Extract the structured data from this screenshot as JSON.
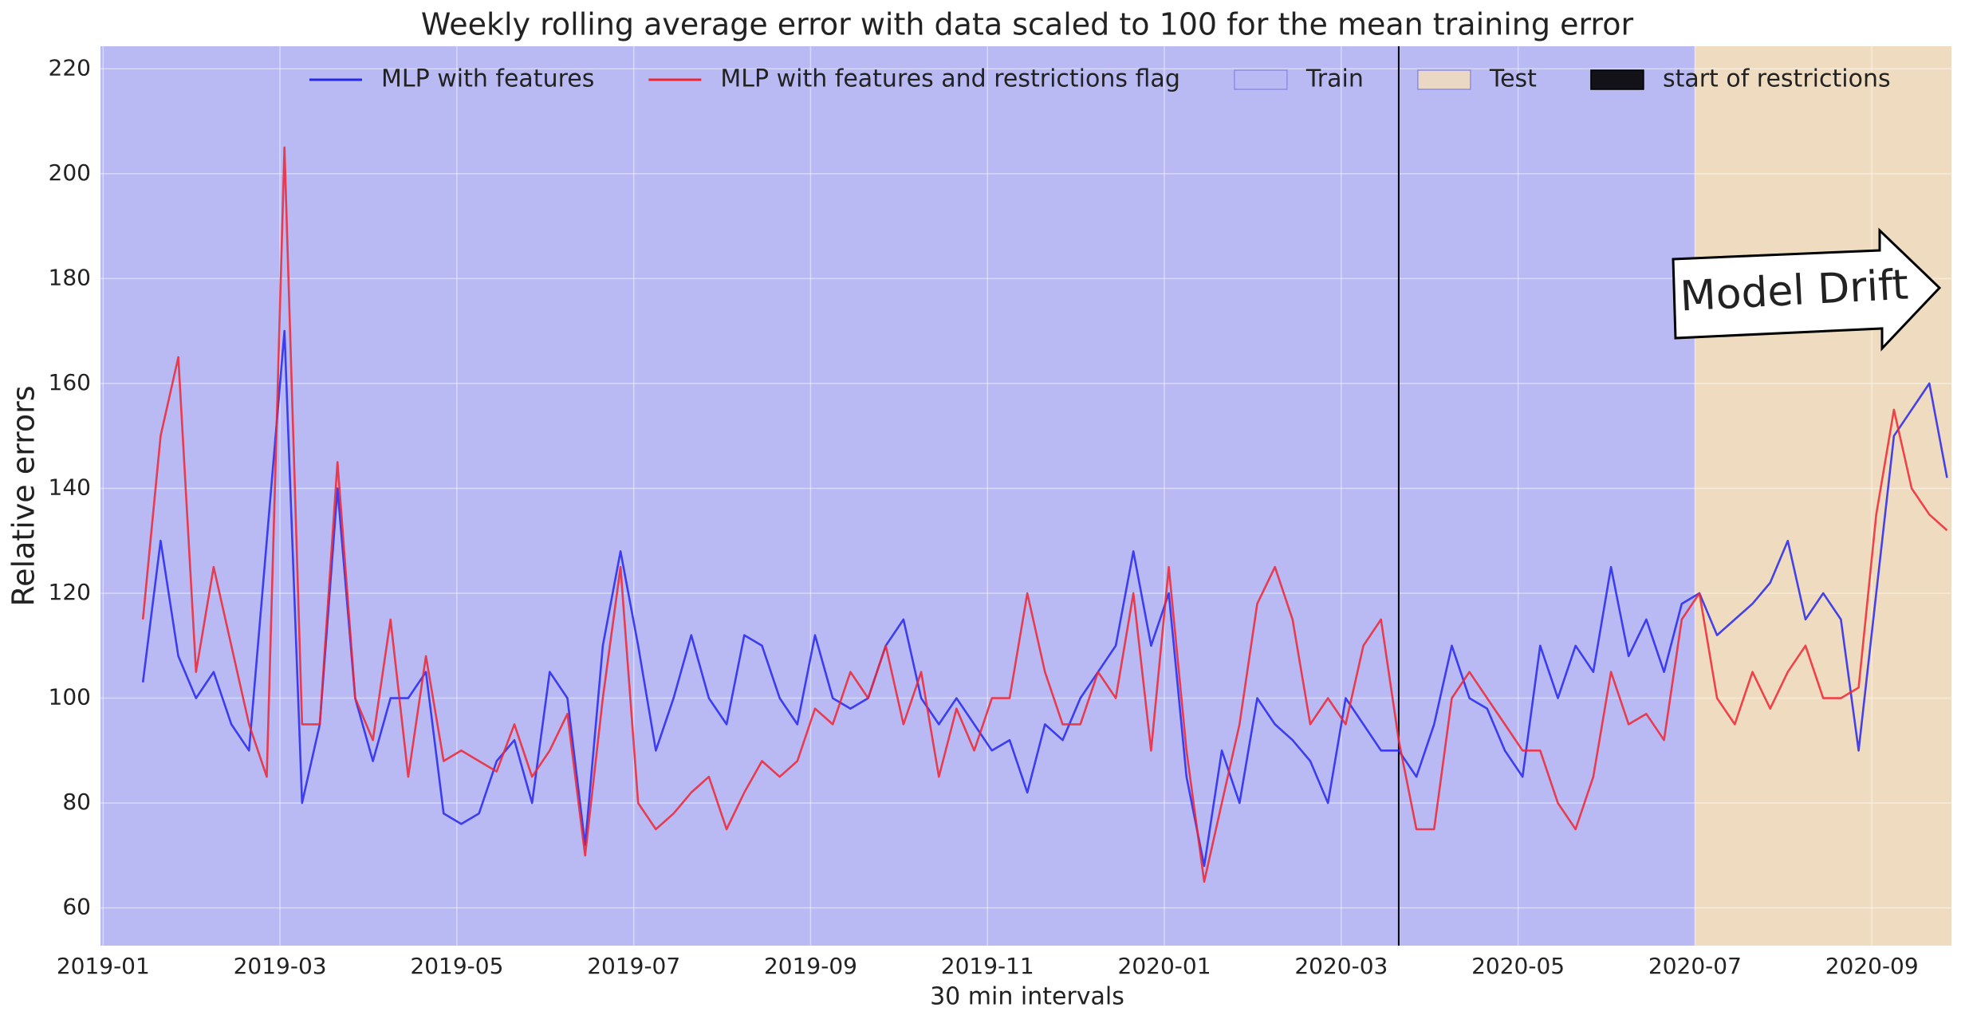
{
  "chart_data": {
    "type": "line",
    "title": "Weekly rolling average error with data scaled to 100 for the mean training error",
    "xlabel": "30 min intervals",
    "ylabel": "Relative errors",
    "annotation": "Model Drift",
    "x": [
      0.45,
      0.65,
      0.85,
      1.05,
      1.25,
      1.45,
      1.65,
      1.85,
      2.05,
      2.25,
      2.45,
      2.65,
      2.85,
      3.05,
      3.25,
      3.45,
      3.65,
      3.85,
      4.05,
      4.25,
      4.45,
      4.65,
      4.85,
      5.05,
      5.25,
      5.45,
      5.65,
      5.85,
      6.05,
      6.25,
      6.45,
      6.65,
      6.85,
      7.05,
      7.25,
      7.45,
      7.65,
      7.85,
      8.05,
      8.25,
      8.45,
      8.65,
      8.85,
      9.05,
      9.25,
      9.45,
      9.65,
      9.85,
      10.05,
      10.25,
      10.45,
      10.65,
      10.85,
      11.05,
      11.25,
      11.45,
      11.65,
      11.85,
      12.05,
      12.25,
      12.45,
      12.65,
      12.85,
      13.05,
      13.25,
      13.45,
      13.65,
      13.85,
      14.05,
      14.25,
      14.45,
      14.65,
      14.85,
      15.05,
      15.25,
      15.45,
      15.65,
      15.85,
      16.05,
      16.25,
      16.45,
      16.65,
      16.85,
      17.05,
      17.25,
      17.45,
      17.65,
      17.85,
      18.05,
      18.25,
      18.45,
      18.65,
      18.85,
      19.05,
      19.25,
      19.45,
      19.65,
      19.85,
      20.05,
      20.25,
      20.45,
      20.65,
      20.85
    ],
    "series": [
      {
        "name": "MLP with features",
        "color": "#2626ee",
        "values": [
          103,
          130,
          108,
          100,
          105,
          95,
          90,
          130,
          170,
          80,
          95,
          140,
          100,
          88,
          100,
          100,
          105,
          78,
          76,
          78,
          88,
          92,
          80,
          105,
          100,
          72,
          110,
          128,
          110,
          90,
          100,
          112,
          100,
          95,
          112,
          110,
          100,
          95,
          112,
          100,
          98,
          100,
          110,
          115,
          100,
          95,
          100,
          95,
          90,
          92,
          82,
          95,
          92,
          100,
          105,
          110,
          128,
          110,
          120,
          85,
          68,
          90,
          80,
          100,
          95,
          92,
          88,
          80,
          100,
          95,
          90,
          90,
          85,
          95,
          110,
          100,
          98,
          90,
          85,
          110,
          100,
          110,
          105,
          125,
          108,
          115,
          105,
          118,
          120,
          112,
          115,
          118,
          122,
          130,
          115,
          120,
          115,
          90,
          120,
          150,
          155,
          160,
          142
        ]
      },
      {
        "name": "MLP with features and restrictions flag",
        "color": "#ee2633",
        "values": [
          115,
          150,
          165,
          105,
          125,
          110,
          95,
          85,
          205,
          95,
          95,
          145,
          100,
          92,
          115,
          85,
          108,
          88,
          90,
          88,
          86,
          95,
          85,
          90,
          97,
          70,
          100,
          125,
          80,
          75,
          78,
          82,
          85,
          75,
          82,
          88,
          85,
          88,
          98,
          95,
          105,
          100,
          110,
          95,
          105,
          85,
          98,
          90,
          100,
          100,
          120,
          105,
          95,
          95,
          105,
          100,
          120,
          90,
          125,
          90,
          65,
          80,
          95,
          118,
          125,
          115,
          95,
          100,
          95,
          110,
          115,
          92,
          75,
          75,
          100,
          105,
          100,
          95,
          90,
          90,
          80,
          75,
          85,
          105,
          95,
          97,
          92,
          115,
          120,
          100,
          95,
          105,
          98,
          105,
          110,
          100,
          100,
          102,
          135,
          155,
          140,
          135,
          132
        ]
      }
    ],
    "spans": [
      {
        "name": "Train",
        "color": "#b9baf3",
        "x": [
          -0.03,
          18
        ]
      },
      {
        "name": "Test",
        "color": "#efdcc0",
        "x": [
          18,
          20.9
        ]
      }
    ],
    "vlines": [
      {
        "name": "start of restrictions",
        "color": "#000000",
        "x": 14.65
      }
    ],
    "xlim": [
      -0.03,
      20.9
    ],
    "xticks": [
      {
        "value": 0,
        "label": "2019-01"
      },
      {
        "value": 2,
        "label": "2019-03"
      },
      {
        "value": 4,
        "label": "2019-05"
      },
      {
        "value": 6,
        "label": "2019-07"
      },
      {
        "value": 8,
        "label": "2019-09"
      },
      {
        "value": 10,
        "label": "2019-11"
      },
      {
        "value": 12,
        "label": "2020-01"
      },
      {
        "value": 14,
        "label": "2020-03"
      },
      {
        "value": 16,
        "label": "2020-05"
      },
      {
        "value": 18,
        "label": "2020-07"
      },
      {
        "value": 20,
        "label": "2020-09"
      }
    ],
    "ylim": [
      52.8,
      224.3
    ],
    "yticks": [
      60,
      80,
      100,
      120,
      140,
      160,
      180,
      200,
      220
    ],
    "grid": true,
    "legend": "top"
  }
}
